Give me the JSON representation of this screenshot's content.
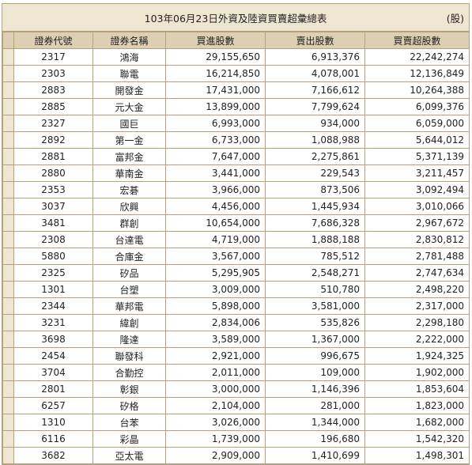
{
  "title": "103年06月23日外資及陸資買賣超彙總表",
  "unit": "(股)",
  "headers": [
    "證券代號",
    "證券名稱",
    "買進股數",
    "賣出股數",
    "買賣超股數"
  ],
  "rows": [
    {
      "code": "2317",
      "name": "鴻海",
      "buy": "29,155,650",
      "sell": "6,913,376",
      "net": "22,242,274"
    },
    {
      "code": "2303",
      "name": "聯電",
      "buy": "16,214,850",
      "sell": "4,078,001",
      "net": "12,136,849"
    },
    {
      "code": "2883",
      "name": "開發金",
      "buy": "17,431,000",
      "sell": "7,166,612",
      "net": "10,264,388"
    },
    {
      "code": "2885",
      "name": "元大金",
      "buy": "13,899,000",
      "sell": "7,799,624",
      "net": "6,099,376"
    },
    {
      "code": "2327",
      "name": "國巨",
      "buy": "6,993,000",
      "sell": "934,000",
      "net": "6,059,000"
    },
    {
      "code": "2892",
      "name": "第一金",
      "buy": "6,733,000",
      "sell": "1,088,988",
      "net": "5,644,012"
    },
    {
      "code": "2881",
      "name": "富邦金",
      "buy": "7,647,000",
      "sell": "2,275,861",
      "net": "5,371,139"
    },
    {
      "code": "2880",
      "name": "華南金",
      "buy": "3,441,000",
      "sell": "229,543",
      "net": "3,211,457"
    },
    {
      "code": "2353",
      "name": "宏碁",
      "buy": "3,966,000",
      "sell": "873,506",
      "net": "3,092,494"
    },
    {
      "code": "3037",
      "name": "欣興",
      "buy": "4,456,000",
      "sell": "1,445,934",
      "net": "3,010,066"
    },
    {
      "code": "3481",
      "name": "群創",
      "buy": "10,654,000",
      "sell": "7,686,328",
      "net": "2,967,672"
    },
    {
      "code": "2308",
      "name": "台達電",
      "buy": "4,719,000",
      "sell": "1,888,188",
      "net": "2,830,812"
    },
    {
      "code": "5880",
      "name": "合庫金",
      "buy": "3,567,000",
      "sell": "785,512",
      "net": "2,781,488"
    },
    {
      "code": "2325",
      "name": "矽品",
      "buy": "5,295,905",
      "sell": "2,548,271",
      "net": "2,747,634"
    },
    {
      "code": "1301",
      "name": "台塑",
      "buy": "3,009,000",
      "sell": "510,780",
      "net": "2,498,220"
    },
    {
      "code": "2344",
      "name": "華邦電",
      "buy": "5,898,000",
      "sell": "3,581,000",
      "net": "2,317,000"
    },
    {
      "code": "3231",
      "name": "緯創",
      "buy": "2,834,006",
      "sell": "535,826",
      "net": "2,298,180"
    },
    {
      "code": "3698",
      "name": "隆達",
      "buy": "3,589,000",
      "sell": "1,367,000",
      "net": "2,222,000"
    },
    {
      "code": "2454",
      "name": "聯發科",
      "buy": "2,921,000",
      "sell": "996,675",
      "net": "1,924,325"
    },
    {
      "code": "3704",
      "name": "合勤控",
      "buy": "2,011,000",
      "sell": "109,000",
      "net": "1,902,000"
    },
    {
      "code": "2801",
      "name": "彰銀",
      "buy": "3,000,000",
      "sell": "1,146,396",
      "net": "1,853,604"
    },
    {
      "code": "6257",
      "name": "矽格",
      "buy": "2,104,000",
      "sell": "281,000",
      "net": "1,823,000"
    },
    {
      "code": "1310",
      "name": "台苯",
      "buy": "3,026,000",
      "sell": "1,344,000",
      "net": "1,682,000"
    },
    {
      "code": "6116",
      "name": "彩晶",
      "buy": "1,739,000",
      "sell": "196,680",
      "net": "1,542,320"
    },
    {
      "code": "3682",
      "name": "亞太電",
      "buy": "2,909,000",
      "sell": "1,410,699",
      "net": "1,498,301"
    }
  ]
}
